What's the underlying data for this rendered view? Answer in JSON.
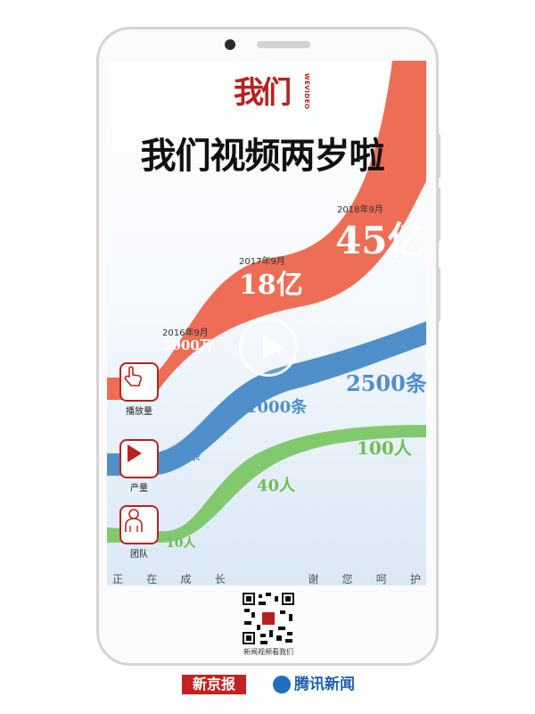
{
  "app": {
    "logo_text": "我们",
    "logo_subtext": "WEVIDEO",
    "headline": "我们视频两岁啦"
  },
  "metrics": {
    "views": [
      {
        "date": "2016年9月",
        "value": "5000万"
      },
      {
        "date": "2017年9月",
        "value": "18亿"
      },
      {
        "date": "2018年9月",
        "value": "45亿"
      }
    ],
    "output": [
      "100条",
      "1000条",
      "2500条"
    ],
    "team": [
      "10人",
      "40人",
      "100人"
    ]
  },
  "legend": {
    "views": "播放量",
    "output": "产量",
    "team": "团队"
  },
  "footer": {
    "chars": [
      "正",
      "在",
      "成",
      "长",
      "谢",
      "您",
      "呵",
      "护"
    ],
    "qr_caption": "新闻视频看我们"
  },
  "brands": {
    "left": "新京报",
    "right": "腾讯新闻"
  },
  "colors": {
    "views": "#ee6e55",
    "output": "#4f8fca",
    "team": "#82c96e",
    "accent": "#b8221f"
  }
}
